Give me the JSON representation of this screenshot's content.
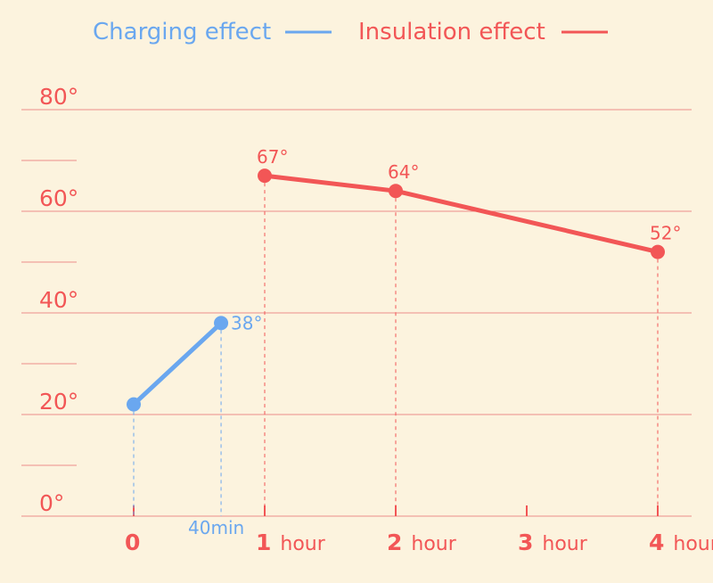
{
  "colors": {
    "background": "#fcf3de",
    "grid": "#ec8d8a",
    "charging": "#6aa7ef",
    "insulation": "#f25656"
  },
  "chart_data": {
    "type": "line",
    "title": "",
    "xlabel": "",
    "ylabel": "",
    "ylim": [
      0,
      80
    ],
    "xlim": [
      0,
      4
    ],
    "grid": "horizontal",
    "legend_position": "top",
    "y_ticks": [
      "0°",
      "20°",
      "40°",
      "60°",
      "80°"
    ],
    "x_ticks": [
      {
        "num": "0",
        "unit": ""
      },
      {
        "num": "1",
        "unit": "hour"
      },
      {
        "num": "2",
        "unit": "hour"
      },
      {
        "num": "3",
        "unit": "hour"
      },
      {
        "num": "4",
        "unit": "hour"
      }
    ],
    "series": [
      {
        "name": "Charging effect",
        "color": "#6aa7ef",
        "x": [
          0,
          0.667
        ],
        "y": [
          22,
          38
        ],
        "labels": [
          "",
          "38°"
        ],
        "x_annotations": [
          "",
          "40min"
        ]
      },
      {
        "name": "Insulation effect",
        "color": "#f25656",
        "x": [
          1,
          2,
          4
        ],
        "y": [
          67,
          64,
          52
        ],
        "labels": [
          "67°",
          "64°",
          "52°"
        ],
        "x_annotations": [
          "",
          "",
          ""
        ]
      }
    ]
  }
}
